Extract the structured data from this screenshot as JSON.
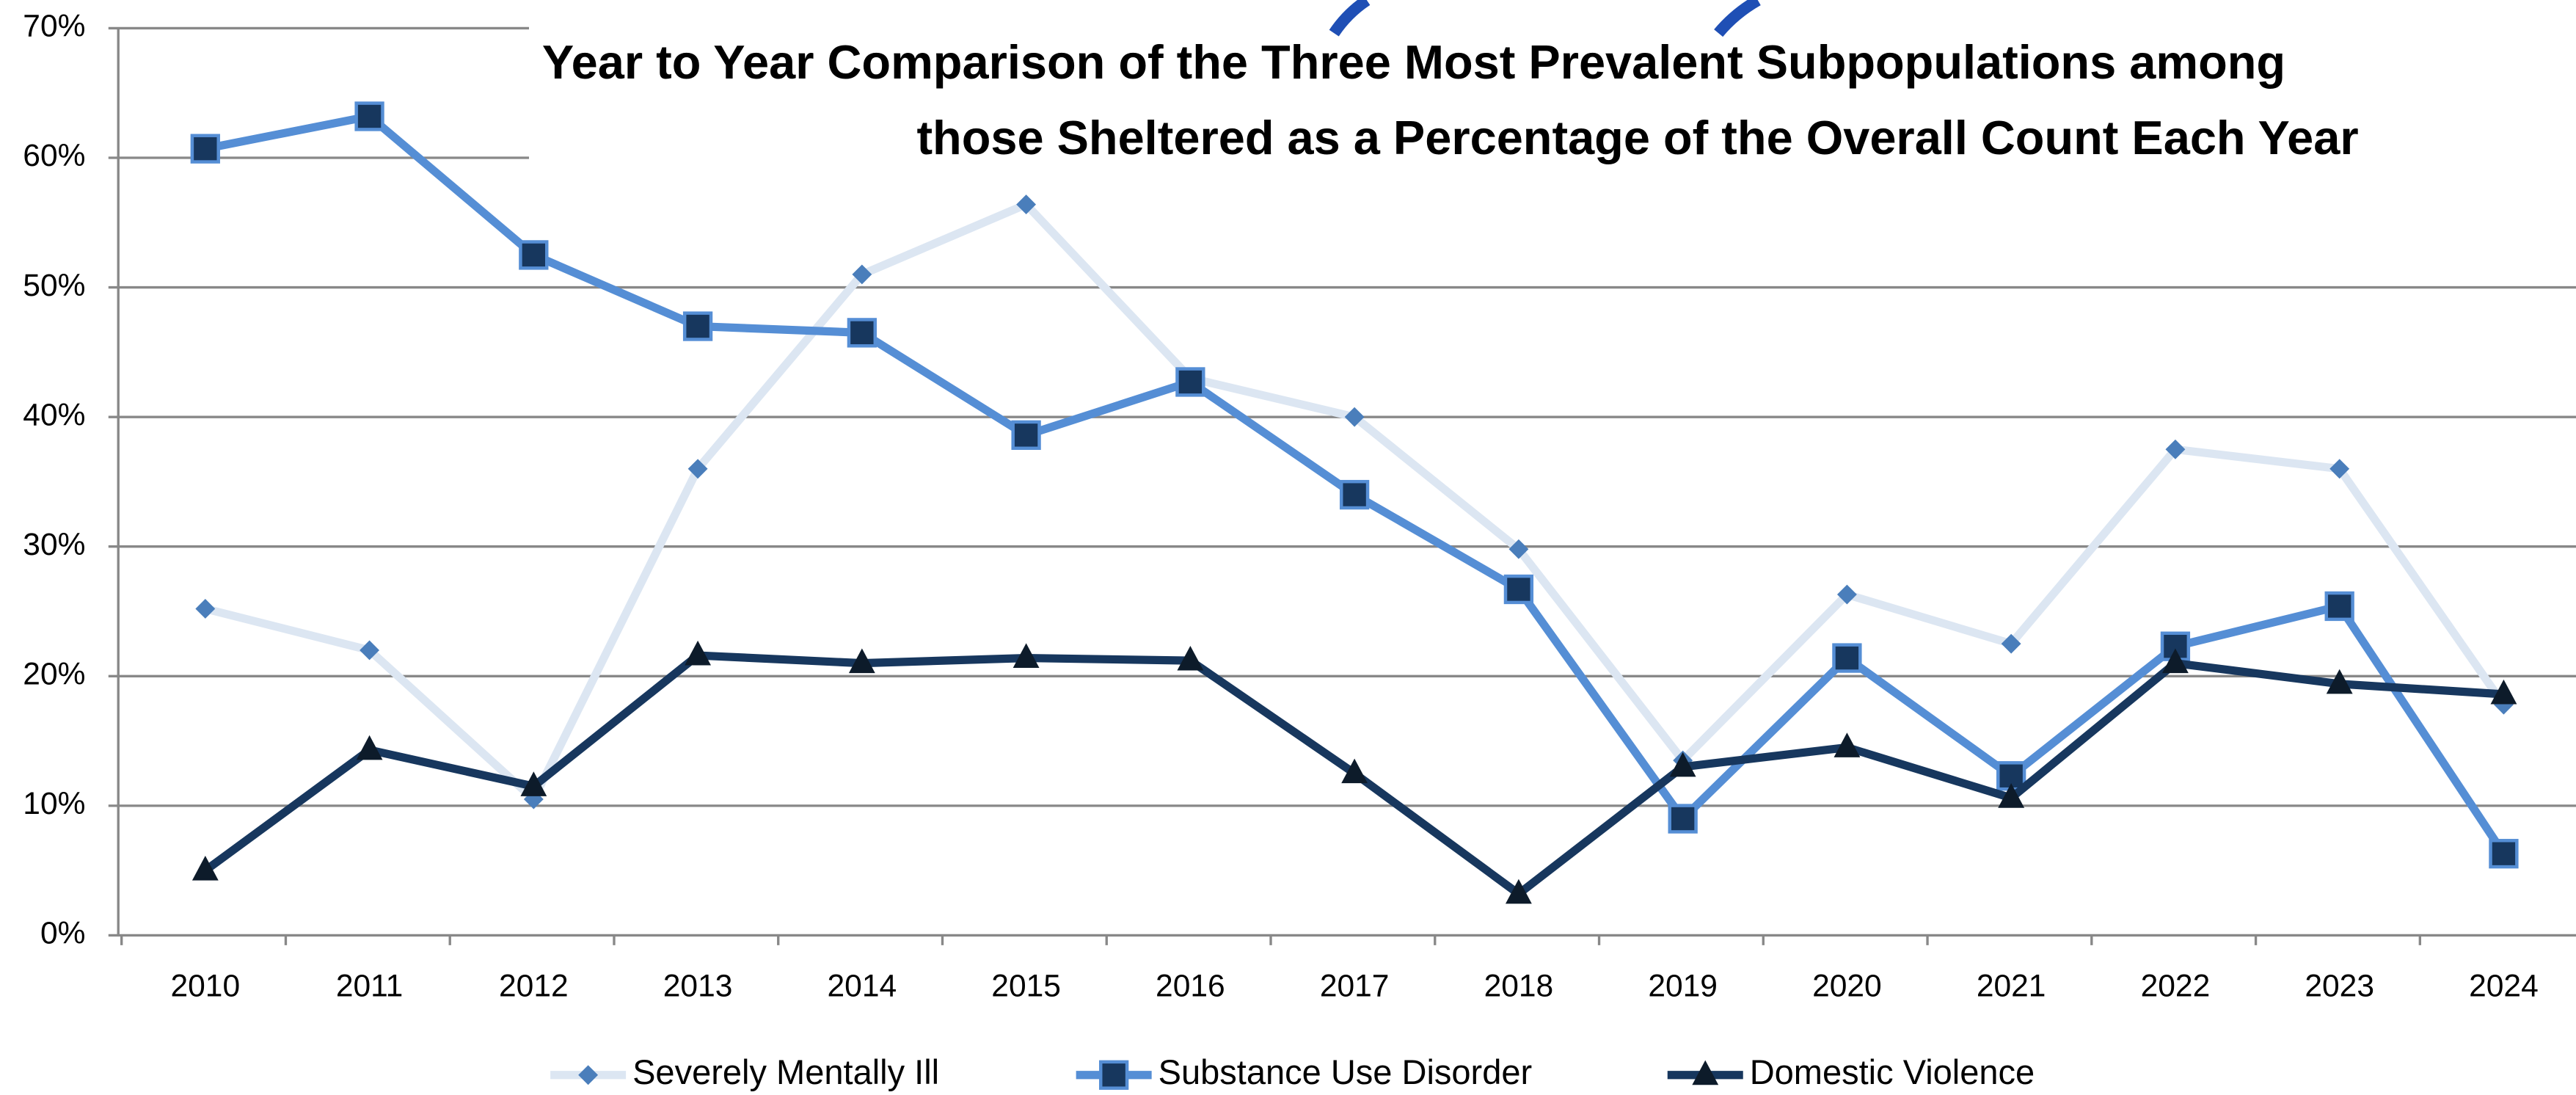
{
  "chart_data": {
    "type": "line",
    "title": [
      "Year to Year Comparison of the Three Most Prevalent Subpopulations among",
      "those Sheltered as a Percentage of the Overall Count Each Year"
    ],
    "categories": [
      "2010",
      "2011",
      "2012",
      "2013",
      "2014",
      "2015",
      "2016",
      "2017",
      "2018",
      "2019",
      "2020",
      "2021",
      "2022",
      "2023",
      "2024"
    ],
    "series": [
      {
        "name": "Severely Mentally Ill",
        "color": "#dce6f2",
        "marker_color": "#4a7ebb",
        "marker": "diamond",
        "values": [
          25.2,
          22,
          10.5,
          36,
          51,
          56.4,
          43,
          40,
          29.8,
          13.5,
          26.3,
          22.5,
          37.5,
          36,
          17.8
        ]
      },
      {
        "name": "Substance Use Disorder",
        "color": "#558ed5",
        "marker_color": "#17375e",
        "marker": "square",
        "values": [
          60.7,
          63.2,
          52.5,
          47,
          46.5,
          38.6,
          42.7,
          34,
          26.7,
          9,
          21.4,
          12.3,
          22.3,
          25.4,
          6.3
        ]
      },
      {
        "name": "Domestic Violence",
        "color": "#17375e",
        "marker_color": "#0d1b2a",
        "marker": "triangle",
        "values": [
          5,
          14.3,
          11.5,
          21.6,
          21,
          21.4,
          21.2,
          12.5,
          3.2,
          13,
          14.5,
          10.6,
          21,
          19.4,
          18.6
        ]
      }
    ],
    "ylim": [
      0,
      70
    ],
    "yticks": [
      {
        "value": 0,
        "label": "0%"
      },
      {
        "value": 10,
        "label": "10%"
      },
      {
        "value": 20,
        "label": "20%"
      },
      {
        "value": 30,
        "label": "30%"
      },
      {
        "value": 40,
        "label": "40%"
      },
      {
        "value": 50,
        "label": "50%"
      },
      {
        "value": 60,
        "label": "60%"
      },
      {
        "value": 70,
        "label": "70%"
      }
    ],
    "grid": true,
    "legend": "bottom"
  }
}
